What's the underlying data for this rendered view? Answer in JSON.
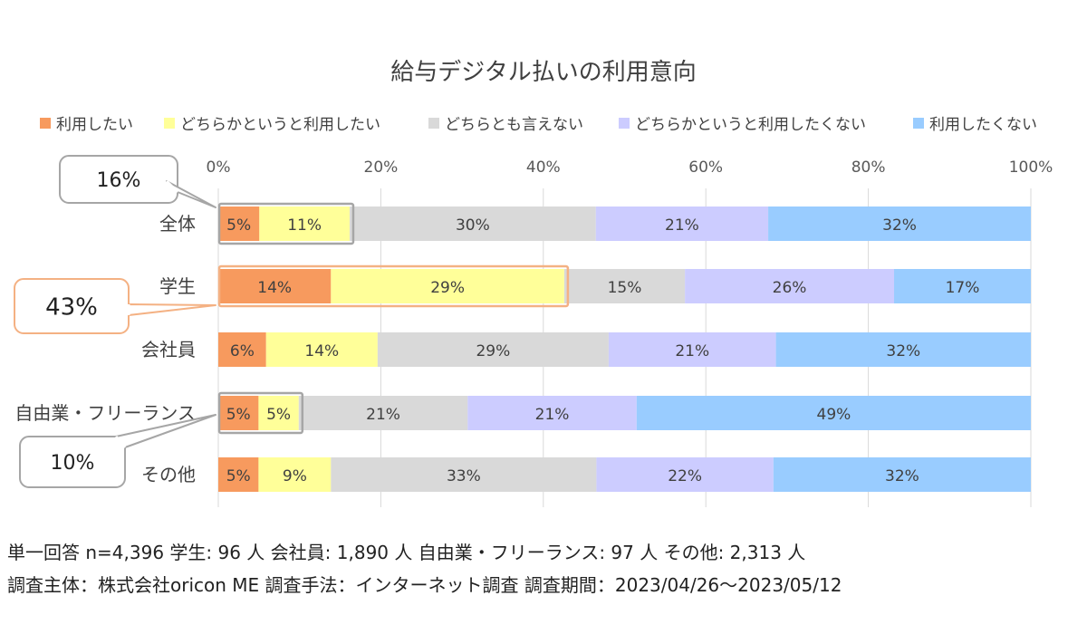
{
  "chart_data": {
    "type": "bar",
    "orientation": "horizontal",
    "stacked": "percent",
    "title": "給与デジタル払いの利用意向",
    "categories": [
      "全体",
      "学生",
      "会社員",
      "自由業・フリーランス",
      "その他"
    ],
    "series": [
      {
        "name": "利用したい",
        "color": "#f79a5e",
        "values": [
          5,
          14,
          6,
          5,
          5
        ]
      },
      {
        "name": "どちらかというと利用したい",
        "color": "#ffff99",
        "values": [
          11,
          29,
          14,
          5,
          9
        ]
      },
      {
        "name": "どちらとも言えない",
        "color": "#d9d9d9",
        "values": [
          30,
          15,
          29,
          21,
          33
        ]
      },
      {
        "name": "どちらかというと利用したくない",
        "color": "#ccccff",
        "values": [
          21,
          26,
          21,
          21,
          22
        ]
      },
      {
        "name": "利用したくない",
        "color": "#99ccff",
        "values": [
          32,
          17,
          32,
          49,
          32
        ]
      }
    ],
    "xaxis": {
      "range": [
        0,
        100
      ],
      "ticks": [
        "0%",
        "20%",
        "40%",
        "60%",
        "80%",
        "100%"
      ]
    },
    "gridlines": true,
    "legend_position": "top",
    "callouts": [
      {
        "label": "16%",
        "category": "全体",
        "series_span": [
          0,
          1
        ],
        "border": "#a6a6a6"
      },
      {
        "label": "43%",
        "category": "学生",
        "series_span": [
          0,
          1
        ],
        "border": "#f4b183"
      },
      {
        "label": "10%",
        "category": "自由業・フリーランス",
        "series_span": [
          0,
          1
        ],
        "border": "#a6a6a6"
      }
    ]
  },
  "notes": {
    "line1": "単一回答 n=4,396  学生: 96 人  会社員: 1,890 人  自由業・フリーランス: 97 人  その他: 2,313 人",
    "line2": "調査主体：株式会社oricon ME  調査手法：インターネット調査  調査期間：2023/04/26～2023/05/12"
  }
}
